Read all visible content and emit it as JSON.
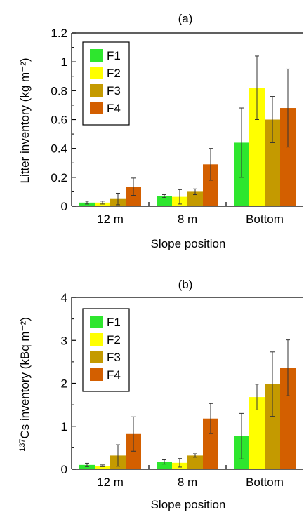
{
  "chart_data": [
    {
      "type": "bar",
      "title": "(a)",
      "xlabel": "Slope position",
      "ylabel": "Litter inventory (kg m⁻²)",
      "categories": [
        "12 m",
        "8 m",
        "Bottom"
      ],
      "ylim": [
        0,
        1.2
      ],
      "yticks": [
        "0",
        "0.2",
        "0.4",
        "0.6",
        "0.8",
        "1",
        "1.2"
      ],
      "grid": false,
      "legend_position": "top-left",
      "series": [
        {
          "name": "F1",
          "color": "#2ee62e",
          "values": [
            0.025,
            0.07,
            0.44
          ],
          "errors": [
            0.01,
            0.01,
            0.24
          ]
        },
        {
          "name": "F2",
          "color": "#ffff00",
          "values": [
            0.025,
            0.065,
            0.82
          ],
          "errors": [
            0.01,
            0.05,
            0.22
          ]
        },
        {
          "name": "F3",
          "color": "#c49a00",
          "values": [
            0.05,
            0.1,
            0.6
          ],
          "errors": [
            0.04,
            0.02,
            0.16
          ]
        },
        {
          "name": "F4",
          "color": "#d35f00",
          "values": [
            0.135,
            0.29,
            0.68
          ],
          "errors": [
            0.06,
            0.11,
            0.27
          ]
        }
      ]
    },
    {
      "type": "bar",
      "title": "(b)",
      "xlabel": "Slope position",
      "ylabel_sup": "137",
      "ylabel_main": "Cs inventory (kBq m⁻²)",
      "categories": [
        "12 m",
        "8 m",
        "Bottom"
      ],
      "ylim": [
        0,
        4
      ],
      "yticks": [
        "0",
        "1",
        "2",
        "3",
        "4"
      ],
      "grid": false,
      "legend_position": "top-left",
      "series": [
        {
          "name": "F1",
          "color": "#2ee62e",
          "values": [
            0.1,
            0.17,
            0.77
          ],
          "errors": [
            0.04,
            0.05,
            0.53
          ]
        },
        {
          "name": "F2",
          "color": "#ffff00",
          "values": [
            0.08,
            0.15,
            1.68
          ],
          "errors": [
            0.02,
            0.1,
            0.3
          ]
        },
        {
          "name": "F3",
          "color": "#c49a00",
          "values": [
            0.32,
            0.32,
            1.98
          ],
          "errors": [
            0.25,
            0.04,
            0.75
          ]
        },
        {
          "name": "F4",
          "color": "#d35f00",
          "values": [
            0.82,
            1.18,
            2.36
          ],
          "errors": [
            0.4,
            0.35,
            0.65
          ]
        }
      ]
    }
  ]
}
